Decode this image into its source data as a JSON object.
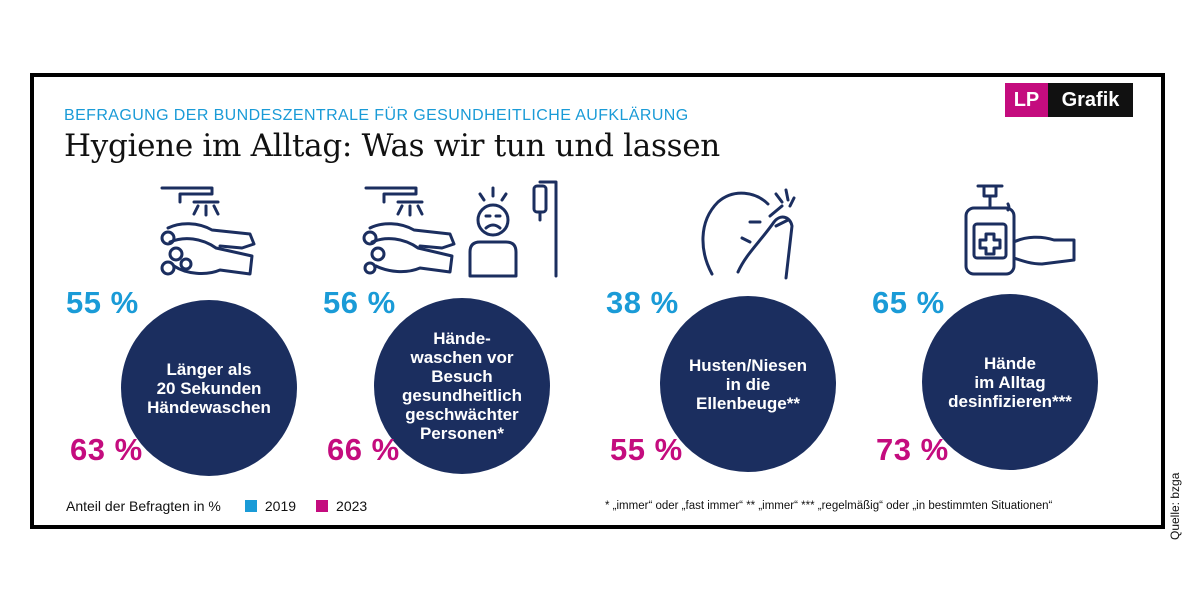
{
  "header": {
    "subtitle": "BEFRAGUNG DER BUNDESZENTRALE FÜR GESUNDHEITLICHE AUFKLÄRUNG",
    "title": "Hygiene im Alltag: Was wir tun und lassen"
  },
  "logo": {
    "lp": "LP",
    "grafik": "Grafik"
  },
  "colors": {
    "y2019": "#1a9bd7",
    "y2023": "#c40c7e",
    "circle": "#1b2e5f",
    "icon": "#1b2e5f"
  },
  "chart_data": {
    "type": "table",
    "title": "Hygiene im Alltag: Was wir tun und lassen",
    "subtitle": "BEFRAGUNG DER BUNDESZENTRALE FÜR GESUNDHEITLICHE AUFKLÄRUNG",
    "unit_label": "Anteil der Befragten in %",
    "series_names": [
      "2019",
      "2023"
    ],
    "items": [
      {
        "label": "Länger als\n20 Sekunden\nHändewaschen",
        "icon": "hand-washing-icon",
        "v2019": 55,
        "v2023": 63,
        "v2019_text": "55 %",
        "v2023_text": "63 %"
      },
      {
        "label": "Hände-\nwaschen vor\nBesuch\ngesundheitlich\ngeschwächter\nPersonen*",
        "icon": "hand-washing-patient-icon",
        "v2019": 56,
        "v2023": 66,
        "v2019_text": "56 %",
        "v2023_text": "66 %"
      },
      {
        "label": "Husten/Niesen\nin die\nEllenbeuge**",
        "icon": "sneeze-elbow-icon",
        "v2019": 38,
        "v2023": 55,
        "v2019_text": "38 %",
        "v2023_text": "55 %"
      },
      {
        "label": "Hände\nim Alltag\ndesinfizieren***",
        "icon": "disinfectant-icon",
        "v2019": 65,
        "v2023": 73,
        "v2019_text": "65 %",
        "v2023_text": "73 %"
      }
    ]
  },
  "legend": {
    "label": "Anteil der Befragten in %",
    "items": [
      {
        "name": "2019",
        "color": "#1a9bd7"
      },
      {
        "name": "2023",
        "color": "#c40c7e"
      }
    ]
  },
  "footnote": "* „immer“ oder „fast immer“   ** „immer“   *** „regelmäßig“ oder „in bestimmten Situationen“",
  "source": "Quelle: bzga"
}
